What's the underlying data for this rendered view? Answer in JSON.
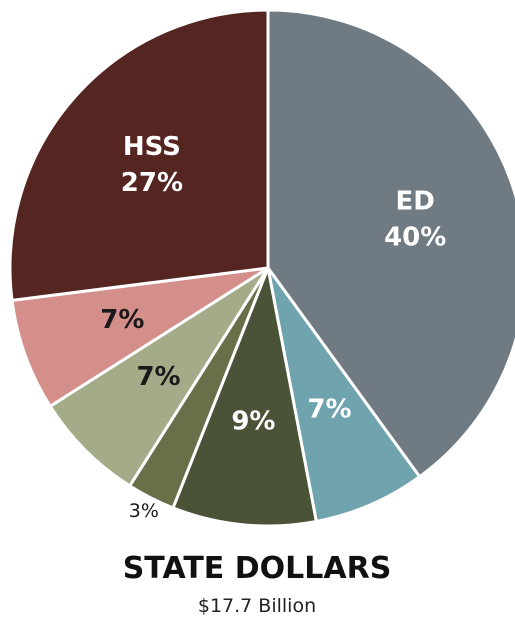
{
  "chart_data": {
    "type": "pie",
    "title": "STATE DOLLARS",
    "subtitle": "$17.7 Billion",
    "categories": [
      "ED",
      null,
      null,
      null,
      null,
      null,
      "HSS"
    ],
    "values": [
      40,
      7,
      9,
      3,
      7,
      7,
      27
    ],
    "value_labels": [
      "40%",
      "7%",
      "9%",
      "3%",
      "7%",
      "7%",
      "27%"
    ],
    "colors": [
      "#6f7a83",
      "#6fa3ae",
      "#4a5237",
      "#68704a",
      "#a3ab88",
      "#d48f8a",
      "#552621"
    ],
    "label_colors": [
      "#ffffff",
      "#ffffff",
      "#ffffff",
      "#1a1a1a",
      "#1a1a1a",
      "#1a1a1a",
      "#ffffff"
    ]
  }
}
